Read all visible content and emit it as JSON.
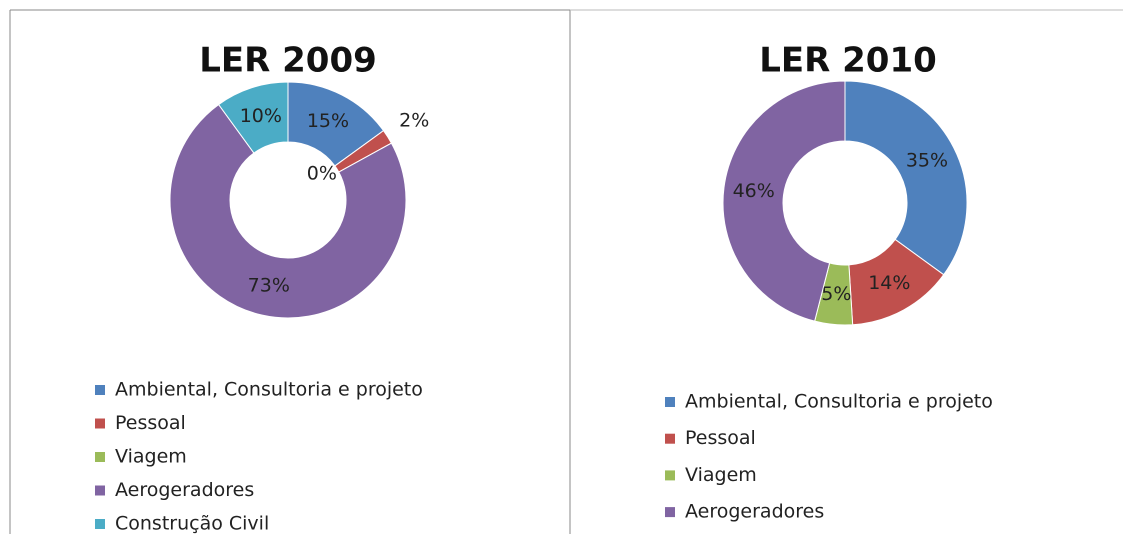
{
  "chart_data": [
    {
      "type": "donut",
      "title": "LER 2009",
      "categories": [
        "Ambiental, Consultoria e projeto",
        "Pessoal",
        "Viagem",
        "Aerogeradores",
        "Construção Civil"
      ],
      "values": [
        15,
        2,
        0,
        73,
        10
      ],
      "value_labels": [
        "15%",
        "2%",
        "0%",
        "73%",
        "10%"
      ],
      "colors": [
        "#4f81bd",
        "#c0504d",
        "#9bbb59",
        "#8064a2",
        "#4bacc6"
      ]
    },
    {
      "type": "donut",
      "title": "LER 2010",
      "categories": [
        "Ambiental, Consultoria e projeto",
        "Pessoal",
        "Viagem",
        "Aerogeradores"
      ],
      "values": [
        35,
        14,
        5,
        46
      ],
      "value_labels": [
        "35%",
        "14%",
        "5%",
        "46%"
      ],
      "colors": [
        "#4f81bd",
        "#c0504d",
        "#9bbb59",
        "#8064a2"
      ]
    }
  ]
}
